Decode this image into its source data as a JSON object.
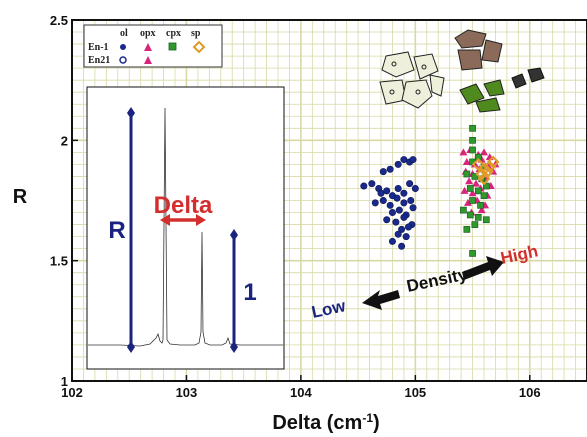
{
  "chart_data": {
    "type": "scatter",
    "xlabel": "Delta (cm",
    "xlabel_sup": "-1",
    "xlabel_end": ")",
    "ylabel": "R",
    "xlim": [
      102,
      106.5
    ],
    "ylim": [
      1,
      2.5
    ],
    "x_ticks": [
      "102",
      "103",
      "104",
      "105",
      "106"
    ],
    "y_ticks": [
      "1",
      "1.5",
      "2",
      "2.5"
    ],
    "grid": true,
    "legend": {
      "placement": "top-left",
      "columns": [
        "ol",
        "opx",
        "cpx",
        "sp"
      ],
      "rows": [
        "En-1",
        "En21"
      ]
    },
    "series": [
      {
        "name": "ol",
        "color": "#1a2a8c",
        "marker": "circle",
        "x": [
          104.55,
          104.62,
          104.68,
          104.72,
          104.78,
          104.85,
          104.9,
          104.95,
          104.98,
          104.7,
          104.75,
          104.8,
          104.85,
          104.9,
          104.95,
          105.0,
          104.65,
          104.72,
          104.78,
          104.84,
          104.9,
          104.96,
          104.8,
          104.86,
          104.92,
          104.98,
          104.75,
          104.83,
          104.9,
          104.97,
          104.88,
          104.94,
          104.85,
          104.92,
          104.8,
          104.88
        ],
        "y": [
          1.81,
          1.82,
          1.8,
          1.87,
          1.88,
          1.9,
          1.92,
          1.91,
          1.92,
          1.78,
          1.79,
          1.77,
          1.8,
          1.78,
          1.82,
          1.8,
          1.74,
          1.75,
          1.73,
          1.76,
          1.74,
          1.75,
          1.7,
          1.71,
          1.69,
          1.72,
          1.67,
          1.66,
          1.68,
          1.65,
          1.63,
          1.64,
          1.61,
          1.6,
          1.58,
          1.56
        ]
      },
      {
        "name": "opx",
        "color": "#d9247e",
        "marker": "triangle",
        "x": [
          105.42,
          105.48,
          105.55,
          105.6,
          105.65,
          105.45,
          105.52,
          105.58,
          105.64,
          105.7,
          105.44,
          105.5,
          105.56,
          105.62,
          105.68,
          105.47,
          105.53,
          105.6,
          105.66,
          105.43,
          105.5,
          105.57,
          105.63,
          105.46,
          105.54,
          105.61,
          105.49,
          105.58
        ],
        "y": [
          1.95,
          1.96,
          1.94,
          1.95,
          1.93,
          1.91,
          1.9,
          1.92,
          1.89,
          1.9,
          1.87,
          1.86,
          1.88,
          1.85,
          1.87,
          1.83,
          1.82,
          1.84,
          1.81,
          1.79,
          1.78,
          1.8,
          1.77,
          1.74,
          1.75,
          1.73,
          1.7,
          1.71
        ]
      },
      {
        "name": "cpx",
        "color": "#2e9a2e",
        "marker": "square",
        "x": [
          105.5,
          105.5,
          105.5,
          105.55,
          105.5,
          105.6,
          105.45,
          105.52,
          105.58,
          105.62,
          105.48,
          105.55,
          105.6,
          105.5,
          105.57,
          105.42,
          105.48,
          105.55,
          105.62,
          105.52,
          105.45,
          105.5
        ],
        "y": [
          2.05,
          2.0,
          1.96,
          1.93,
          1.91,
          1.89,
          1.86,
          1.85,
          1.84,
          1.81,
          1.8,
          1.79,
          1.77,
          1.75,
          1.73,
          1.71,
          1.69,
          1.68,
          1.67,
          1.65,
          1.63,
          1.53
        ]
      },
      {
        "name": "sp",
        "color": "#e09a2a",
        "marker": "diamond",
        "x": [
          105.55,
          105.6,
          105.65,
          105.58,
          105.63,
          105.68,
          105.6
        ],
        "y": [
          1.9,
          1.88,
          1.89,
          1.86,
          1.87,
          1.91,
          1.84
        ]
      }
    ],
    "annotations": {
      "density_low": "Low",
      "density_label": "Density",
      "density_high": "High",
      "inset_R": "R",
      "inset_delta": "Delta",
      "inset_one": "1"
    },
    "colors": {
      "grid": "#d9d9a6",
      "dark_blue": "#1a237e",
      "red": "#d32f2f",
      "black": "#000000"
    }
  }
}
